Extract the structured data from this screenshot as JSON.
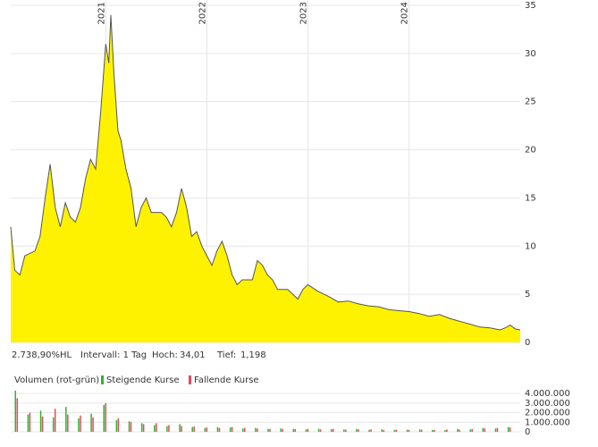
{
  "chart_data": [
    {
      "type": "area",
      "color": "#fff200",
      "line_color": "#555555",
      "grid": true,
      "xlim": [
        2020.06,
        2025.1
      ],
      "xticks": [
        2021,
        2022,
        2023,
        2024
      ],
      "ylim": [
        0,
        35
      ],
      "yticks": [
        0,
        5,
        10,
        15,
        20,
        25,
        30,
        35
      ],
      "x": [
        2020.06,
        2020.1,
        2020.15,
        2020.2,
        2020.3,
        2020.35,
        2020.4,
        2020.45,
        2020.5,
        2020.55,
        2020.6,
        2020.65,
        2020.7,
        2020.75,
        2020.8,
        2020.85,
        2020.9,
        2020.95,
        2021.0,
        2021.03,
        2021.05,
        2021.08,
        2021.12,
        2021.15,
        2021.2,
        2021.25,
        2021.3,
        2021.35,
        2021.4,
        2021.45,
        2021.5,
        2021.55,
        2021.6,
        2021.65,
        2021.7,
        2021.75,
        2021.8,
        2021.85,
        2021.9,
        2021.95,
        2022.0,
        2022.05,
        2022.1,
        2022.15,
        2022.2,
        2022.25,
        2022.3,
        2022.35,
        2022.4,
        2022.45,
        2022.5,
        2022.55,
        2022.6,
        2022.65,
        2022.7,
        2022.75,
        2022.8,
        2022.85,
        2022.9,
        2022.95,
        2023.0,
        2023.1,
        2023.2,
        2023.3,
        2023.4,
        2023.5,
        2023.6,
        2023.7,
        2023.8,
        2023.9,
        2024.0,
        2024.1,
        2024.2,
        2024.3,
        2024.4,
        2024.5,
        2024.6,
        2024.7,
        2024.8,
        2024.9,
        2024.95,
        2025.0,
        2025.05,
        2025.1
      ],
      "values": [
        12,
        7.5,
        7,
        9,
        9.5,
        11,
        15,
        18.5,
        14,
        12,
        14.5,
        13,
        12.5,
        14,
        17,
        19,
        18,
        24,
        31,
        29,
        34,
        28,
        22,
        21,
        18,
        16,
        12,
        14,
        15,
        13.5,
        13.5,
        13.5,
        13,
        12,
        13.5,
        16,
        14,
        11,
        11.5,
        10,
        9,
        8,
        9.5,
        10.5,
        9,
        7,
        6,
        6.5,
        6.5,
        6.5,
        8.5,
        8,
        7,
        6.5,
        5.5,
        5.5,
        5.5,
        5,
        4.5,
        5.5,
        6,
        5.3,
        4.8,
        4.2,
        4.3,
        4,
        3.8,
        3.7,
        3.4,
        3.3,
        3.2,
        3,
        2.7,
        2.9,
        2.5,
        2.2,
        1.9,
        1.6,
        1.5,
        1.3,
        1.5,
        1.8,
        1.4,
        1.3
      ],
      "info": {
        "range": "2.738,90%HL",
        "interval": "Intervall: 1 Tag",
        "high_label": "Hoch:",
        "high": "34,01",
        "low_label": "Tief:",
        "low": "1,198"
      }
    },
    {
      "type": "bar",
      "title": "Volumen (rot-grün)",
      "xlim": [
        2020.06,
        2025.1
      ],
      "ylim": [
        0,
        4200000
      ],
      "yticks": [
        {
          "value": 0,
          "label": "0"
        },
        {
          "value": 1000000,
          "label": "1.000.000"
        },
        {
          "value": 2000000,
          "label": "2.000.000"
        },
        {
          "value": 3000000,
          "label": "3.000.000"
        },
        {
          "value": 4000000,
          "label": "4.000.000"
        }
      ],
      "x": [
        2020.1,
        2020.225,
        2020.35,
        2020.475,
        2020.6,
        2020.725,
        2020.85,
        2020.975,
        2021.1,
        2021.225,
        2021.35,
        2021.475,
        2021.6,
        2021.725,
        2021.85,
        2021.975,
        2022.1,
        2022.225,
        2022.35,
        2022.475,
        2022.6,
        2022.725,
        2022.85,
        2022.975,
        2023.1,
        2023.225,
        2023.35,
        2023.475,
        2023.6,
        2023.725,
        2023.85,
        2023.975,
        2024.1,
        2024.225,
        2024.35,
        2024.475,
        2024.6,
        2024.725,
        2024.85,
        2024.975
      ],
      "series": [
        {
          "name": "Steigende Kurse",
          "color": "#2db52d",
          "values": [
            4300000,
            1800000,
            2200000,
            1500000,
            2600000,
            1400000,
            1900000,
            2800000,
            1200000,
            1100000,
            900000,
            700000,
            600000,
            800000,
            500000,
            400000,
            500000,
            450000,
            350000,
            400000,
            300000,
            350000,
            300000,
            250000,
            300000,
            280000,
            250000,
            300000,
            220000,
            250000,
            200000,
            220000,
            250000,
            200000,
            180000,
            300000,
            250000,
            400000,
            350000,
            500000
          ]
        },
        {
          "name": "Fallende Kurse",
          "color": "#e8485e",
          "values": [
            3500000,
            2000000,
            1600000,
            2400000,
            1800000,
            1700000,
            1500000,
            3000000,
            1400000,
            1000000,
            800000,
            900000,
            700000,
            600000,
            550000,
            450000,
            400000,
            500000,
            400000,
            350000,
            300000,
            300000,
            280000,
            300000,
            250000,
            300000,
            230000,
            250000,
            250000,
            200000,
            230000,
            200000,
            220000,
            200000,
            250000,
            220000,
            300000,
            350000,
            400000,
            450000
          ]
        }
      ]
    }
  ]
}
